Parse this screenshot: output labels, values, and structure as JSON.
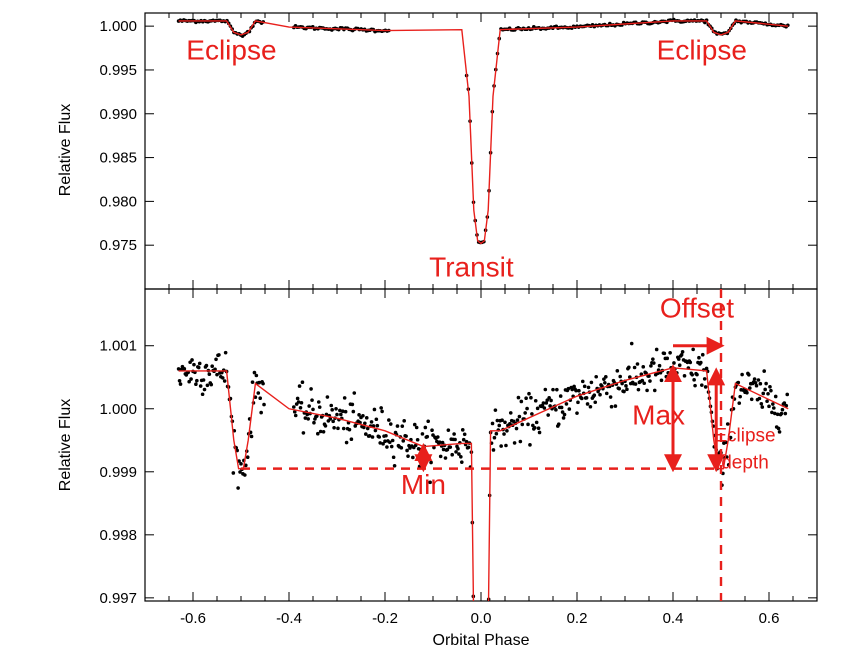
{
  "chart_data": [
    {
      "panel": "top",
      "type": "scatter",
      "title": "",
      "xlabel": "",
      "ylabel": "Relative Flux",
      "xlim": [
        -0.7,
        0.7
      ],
      "ylim": [
        0.97,
        1.0015
      ],
      "xticks": [],
      "yticks": [
        0.975,
        0.98,
        0.985,
        0.99,
        0.995,
        1.0
      ],
      "ytick_labels": [
        "0.975",
        "0.980",
        "0.985",
        "0.990",
        "0.995",
        "1.000"
      ],
      "grid": false,
      "series": [
        {
          "kind": "observations",
          "color": "#000000",
          "segments": [
            [
              -0.63,
              -0.45
            ],
            [
              -0.39,
              -0.19
            ],
            [
              -0.03,
              0.02
            ],
            [
              0.02,
              0.64
            ]
          ]
        },
        {
          "kind": "model",
          "color": "#e8201c",
          "x": [
            -0.63,
            -0.53,
            -0.515,
            -0.5,
            -0.485,
            -0.47,
            -0.4,
            -0.2,
            -0.04,
            -0.025,
            -0.015,
            -0.007,
            0,
            0.007,
            0.015,
            0.025,
            0.04,
            0.2,
            0.4,
            0.47,
            0.485,
            0.5,
            0.515,
            0.53,
            0.64
          ],
          "y": [
            1.0006,
            1.0006,
            0.9993,
            0.999,
            0.9993,
            1.0006,
            0.9999,
            0.9995,
            0.9996,
            0.992,
            0.979,
            0.9755,
            0.9752,
            0.9755,
            0.979,
            0.992,
            0.9996,
            0.9999,
            1.0006,
            1.0006,
            0.9993,
            0.999,
            0.9993,
            1.0006,
            1.0
          ]
        }
      ],
      "annotations": [
        {
          "text": "Eclipse",
          "x": -0.52,
          "y": 0.9962
        },
        {
          "text": "Eclipse",
          "x": 0.46,
          "y": 0.9962
        },
        {
          "text": "Transit",
          "x": -0.02,
          "y": 0.9714
        }
      ]
    },
    {
      "panel": "bottom",
      "type": "scatter",
      "title": "",
      "xlabel": "Orbital Phase",
      "ylabel": "Relative Flux",
      "xlim": [
        -0.7,
        0.7
      ],
      "ylim": [
        0.99695,
        1.0019
      ],
      "xticks": [
        -0.6,
        -0.4,
        -0.2,
        0.0,
        0.2,
        0.4,
        0.6
      ],
      "xtick_labels": [
        "-0.6",
        "-0.4",
        "-0.2",
        "0.0",
        "0.2",
        "0.4",
        "0.6"
      ],
      "yticks": [
        0.997,
        0.998,
        0.999,
        1.0,
        1.001
      ],
      "ytick_labels": [
        "0.997",
        "0.998",
        "0.999",
        "1.000",
        "1.001"
      ],
      "grid": false,
      "series": [
        {
          "kind": "observations",
          "color": "#000000",
          "segments": [
            [
              -0.63,
              -0.45
            ],
            [
              -0.39,
              -0.19
            ],
            [
              -0.19,
              -0.03
            ],
            [
              -0.03,
              0.02
            ],
            [
              0.02,
              0.64
            ]
          ]
        },
        {
          "kind": "model",
          "color": "#e8201c",
          "x": [
            -0.63,
            -0.53,
            -0.515,
            -0.505,
            -0.495,
            -0.485,
            -0.47,
            -0.4,
            -0.3,
            -0.2,
            -0.12,
            -0.04,
            -0.02,
            -0.015,
            0.015,
            0.02,
            0.04,
            0.2,
            0.3,
            0.4,
            0.47,
            0.485,
            0.495,
            0.505,
            0.515,
            0.53,
            0.64
          ],
          "y": [
            1.0006,
            1.0006,
            0.9995,
            0.99905,
            0.99905,
            0.9995,
            1.0004,
            1.0,
            0.99985,
            0.99965,
            0.9994,
            0.99945,
            0.99945,
            0.9965,
            0.9965,
            0.99965,
            0.99965,
            1.0002,
            1.00045,
            1.00065,
            1.0006,
            0.9995,
            0.99905,
            0.99905,
            0.9995,
            1.0004,
            1.0
          ]
        }
      ],
      "reference_lines": [
        {
          "orientation": "horizontal",
          "y": 0.99905,
          "x_from": -0.5,
          "x_to": 0.5,
          "style": "dashed"
        },
        {
          "orientation": "vertical",
          "x": 0.5,
          "style": "dashed"
        }
      ],
      "annotations": [
        {
          "text": "Min",
          "x": -0.12,
          "y": 0.99865,
          "arrow": {
            "from": 0.9994,
            "to": 0.99905,
            "x": -0.12
          }
        },
        {
          "text": "Max",
          "x": 0.37,
          "y": 0.99975,
          "arrow": {
            "from": 1.00065,
            "to": 0.99905,
            "x": 0.4
          }
        },
        {
          "text": "Offset",
          "x": 0.45,
          "y": 1.00145,
          "arrow": {
            "x_from": 0.4,
            "x_to": 0.5,
            "y": 1.001
          }
        },
        {
          "text": "Eclipse",
          "x": 0.55,
          "y": 0.99948,
          "arrow": {
            "from": 1.0006,
            "to": 0.99905,
            "x": 0.49
          }
        },
        {
          "text": "depth",
          "x": 0.55,
          "y": 0.99905
        }
      ]
    }
  ]
}
